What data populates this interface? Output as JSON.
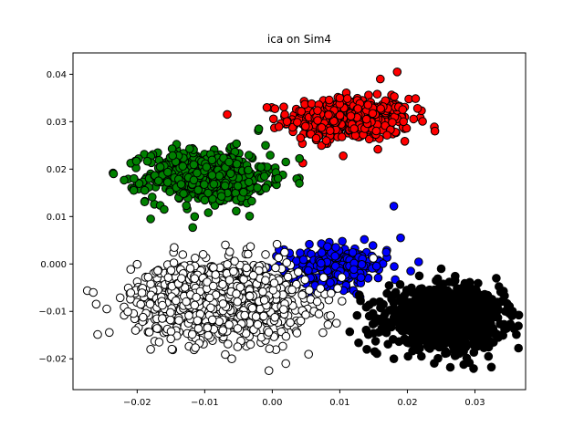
{
  "chart_data": {
    "type": "scatter",
    "title": "ica on Sim4",
    "xlabel": "",
    "ylabel": "",
    "xlim": [
      -0.0295,
      0.0375
    ],
    "ylim": [
      -0.0265,
      0.0445
    ],
    "xticks": [
      -0.02,
      -0.01,
      0.0,
      0.01,
      0.02,
      0.03
    ],
    "xtick_labels": [
      "−0.02",
      "−0.01",
      "0.00",
      "0.01",
      "0.02",
      "0.03"
    ],
    "yticks": [
      -0.02,
      -0.01,
      0.0,
      0.01,
      0.02,
      0.03,
      0.04
    ],
    "ytick_labels": [
      "−0.02",
      "−0.01",
      "0.000",
      "0.01",
      "0.02",
      "0.03",
      "0.04"
    ],
    "grid": false,
    "legend": "none",
    "marker_edge_color": "#000000",
    "series": [
      {
        "color": "#ff0000",
        "cluster": {
          "cx": 0.0115,
          "cy": 0.0305,
          "sx": 0.0045,
          "sy": 0.0022,
          "n": 500
        },
        "points": [
          [
            0.01,
            0.035
          ],
          [
            0.016,
            0.039
          ],
          [
            0.0185,
            0.0405
          ],
          [
            0.0065,
            0.0265
          ],
          [
            0.0105,
            0.0228
          ],
          [
            0.0215,
            0.0328
          ],
          [
            -0.0008,
            0.033
          ],
          [
            0.008,
            0.026
          ]
        ]
      },
      {
        "color": "#008000",
        "cluster": {
          "cx": -0.0095,
          "cy": 0.0185,
          "sx": 0.0045,
          "sy": 0.0028,
          "n": 600
        },
        "points": [
          [
            -0.0235,
            0.019
          ],
          [
            -0.0205,
            0.0155
          ],
          [
            -0.016,
            0.0115
          ],
          [
            -0.0115,
            0.01
          ],
          [
            -0.018,
            0.0095
          ],
          [
            0.004,
            0.017
          ],
          [
            0.002,
            0.0215
          ],
          [
            -0.002,
            0.0285
          ],
          [
            -0.001,
            0.025
          ]
        ]
      },
      {
        "color": "#0000ff",
        "cluster": {
          "cx": 0.0095,
          "cy": -0.0005,
          "sx": 0.0038,
          "sy": 0.0022,
          "n": 260
        },
        "points": [
          [
            0.018,
            0.0122
          ],
          [
            0.019,
            0.0055
          ],
          [
            0.001,
            0.003
          ],
          [
            0.0055,
            -0.007
          ],
          [
            0.013,
            -0.007
          ],
          [
            0.0205,
            -0.0015
          ]
        ]
      },
      {
        "color": "#ffffff",
        "cluster": {
          "cx": -0.0075,
          "cy": -0.0075,
          "sx": 0.0062,
          "sy": 0.004,
          "n": 1100
        },
        "points": [
          [
            -0.0265,
            -0.006
          ],
          [
            -0.0245,
            -0.0095
          ],
          [
            -0.018,
            -0.018
          ],
          [
            -0.006,
            -0.02
          ],
          [
            -0.0005,
            -0.0225
          ],
          [
            0.002,
            -0.021
          ],
          [
            0.0095,
            -0.0125
          ],
          [
            0.0075,
            -0.0145
          ],
          [
            -0.001,
            0.002
          ]
        ]
      },
      {
        "color": "#000000",
        "cluster": {
          "cx": 0.0255,
          "cy": -0.0115,
          "sx": 0.0042,
          "sy": 0.003,
          "n": 1100
        },
        "points": [
          [
            0.014,
            -0.018
          ],
          [
            0.0155,
            -0.0115
          ],
          [
            0.032,
            -0.0195
          ],
          [
            0.0345,
            -0.01
          ],
          [
            0.034,
            -0.006
          ],
          [
            0.025,
            -0.001
          ],
          [
            0.018,
            -0.02
          ]
        ]
      }
    ]
  }
}
